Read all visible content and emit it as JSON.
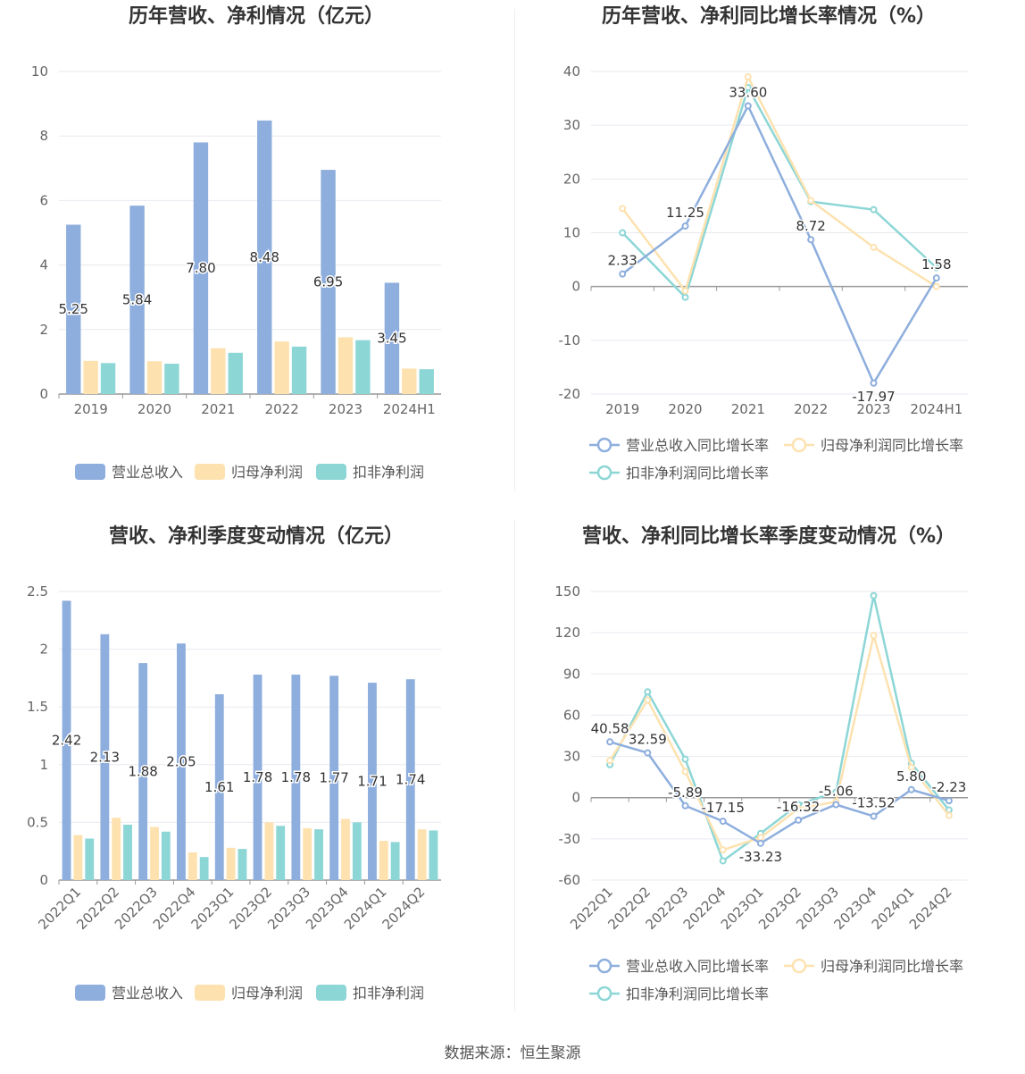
{
  "colors": {
    "revenue": "#8eaedd",
    "net_profit": "#fde2b0",
    "deducted_profit": "#8dd6d6",
    "grid": "#e8eaf0",
    "axis_text": "#666666",
    "title": "#333333"
  },
  "legend": {
    "revenue_bar": "营业总收入",
    "net_profit_bar": "归母净利润",
    "deducted_profit_bar": "扣非净利润",
    "revenue_growth": "营业总收入同比增长率",
    "net_profit_growth": "归母净利润同比增长率",
    "deducted_profit_growth": "扣非净利润同比增长率"
  },
  "source": "数据来源：恒生聚源",
  "chart_data": [
    {
      "id": "annual-amount",
      "type": "bar",
      "title": "历年营收、净利情况（亿元）",
      "categories": [
        "2019",
        "2020",
        "2021",
        "2022",
        "2023",
        "2024H1"
      ],
      "yticks": [
        "0",
        "2",
        "4",
        "6",
        "8",
        "10"
      ],
      "ylim": [
        0,
        10
      ],
      "series": [
        {
          "name": "营业总收入",
          "values": [
            5.25,
            5.84,
            7.8,
            8.48,
            6.95,
            3.45
          ],
          "labels": [
            "5.25",
            "5.84",
            "7.80",
            "8.48",
            "6.95",
            "3.45"
          ]
        },
        {
          "name": "归母净利润",
          "values": [
            1.03,
            1.02,
            1.42,
            1.63,
            1.76,
            0.79
          ]
        },
        {
          "name": "扣非净利润",
          "values": [
            0.96,
            0.94,
            1.28,
            1.47,
            1.67,
            0.77
          ]
        }
      ]
    },
    {
      "id": "annual-growth",
      "type": "line",
      "title": "历年营收、净利同比增长率情况（%）",
      "categories": [
        "2019",
        "2020",
        "2021",
        "2022",
        "2023",
        "2024H1"
      ],
      "yticks": [
        "-20",
        "-10",
        "0",
        "10",
        "20",
        "30",
        "40"
      ],
      "ylim": [
        -20,
        40
      ],
      "series": [
        {
          "name": "营业总收入同比增长率",
          "values": [
            2.33,
            11.25,
            33.6,
            8.72,
            -17.97,
            1.58
          ],
          "labels": [
            "2.33",
            "11.25",
            "33.60",
            "8.72",
            "-17.97",
            "1.58"
          ]
        },
        {
          "name": "归母净利润同比增长率",
          "values": [
            14.5,
            -0.8,
            39.0,
            16.0,
            7.3,
            0.0
          ]
        },
        {
          "name": "扣非净利润同比增长率",
          "values": [
            10.0,
            -2.0,
            37.0,
            15.8,
            14.3,
            3.5
          ]
        }
      ]
    },
    {
      "id": "quarterly-amount",
      "type": "bar",
      "title": "营收、净利季度变动情况（亿元）",
      "categories": [
        "2022Q1",
        "2022Q2",
        "2022Q3",
        "2022Q4",
        "2023Q1",
        "2023Q2",
        "2023Q3",
        "2023Q4",
        "2024Q1",
        "2024Q2"
      ],
      "yticks": [
        "0",
        "0.5",
        "1",
        "1.5",
        "2",
        "2.5"
      ],
      "ylim": [
        0,
        2.5
      ],
      "series": [
        {
          "name": "营业总收入",
          "values": [
            2.42,
            2.13,
            1.88,
            2.05,
            1.61,
            1.78,
            1.78,
            1.77,
            1.71,
            1.74
          ],
          "labels": [
            "2.42",
            "2.13",
            "1.88",
            "2.05",
            "1.61",
            "1.78",
            "1.78",
            "1.77",
            "1.71",
            "1.74"
          ]
        },
        {
          "name": "归母净利润",
          "values": [
            0.39,
            0.54,
            0.46,
            0.24,
            0.28,
            0.5,
            0.45,
            0.53,
            0.34,
            0.44
          ]
        },
        {
          "name": "扣非净利润",
          "values": [
            0.36,
            0.48,
            0.42,
            0.2,
            0.27,
            0.47,
            0.44,
            0.5,
            0.33,
            0.43
          ]
        }
      ]
    },
    {
      "id": "quarterly-growth",
      "type": "line",
      "title": "营收、净利同比增长率季度变动情况（%）",
      "categories": [
        "2022Q1",
        "2022Q2",
        "2022Q3",
        "2022Q4",
        "2023Q1",
        "2023Q2",
        "2023Q3",
        "2023Q4",
        "2024Q1",
        "2024Q2"
      ],
      "yticks": [
        "-60",
        "-30",
        "0",
        "30",
        "60",
        "90",
        "120",
        "150"
      ],
      "ylim": [
        -60,
        150
      ],
      "series": [
        {
          "name": "营业总收入同比增长率",
          "values": [
            40.58,
            32.59,
            -5.89,
            -17.15,
            -33.23,
            -16.32,
            -5.06,
            -13.52,
            5.8,
            -2.23
          ],
          "labels": [
            "40.58",
            "32.59",
            "-5.89",
            "-17.15",
            "-33.23",
            "-16.32",
            "-5.06",
            "-13.52",
            "5.80",
            "-2.23"
          ]
        },
        {
          "name": "归母净利润同比增长率",
          "values": [
            27,
            71,
            19,
            -38,
            -29,
            -8,
            -3,
            118,
            22,
            -13
          ]
        },
        {
          "name": "扣非净利润同比增长率",
          "values": [
            24,
            77,
            28,
            -46,
            -26,
            -5,
            4,
            147,
            25,
            -9
          ]
        }
      ]
    }
  ]
}
